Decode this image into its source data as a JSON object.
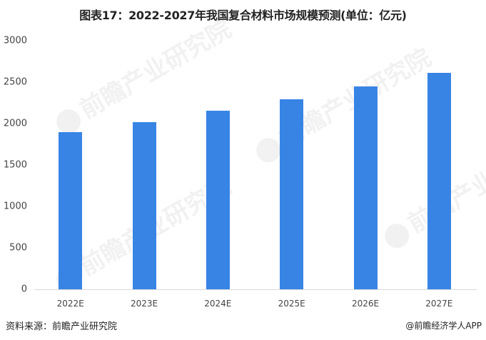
{
  "title": "图表17：2022-2027年我国复合材料市场规模预测(单位：亿元)",
  "source": "资料来源：前瞻产业研究院",
  "credit": "@前瞻经济学人APP",
  "watermark": "前瞻产业研究院",
  "colors": {
    "bar": "#3884e5",
    "axis": "#d9d9d9"
  },
  "chart_data": {
    "type": "bar",
    "title": "图表17：2022-2027年我国复合材料市场规模预测(单位：亿元)",
    "xlabel": "",
    "ylabel": "",
    "categories": [
      "2022E",
      "2023E",
      "2024E",
      "2025E",
      "2026E",
      "2027E"
    ],
    "values": [
      1900,
      2020,
      2155,
      2295,
      2450,
      2610
    ],
    "yticks": [
      "0",
      "500",
      "1000",
      "1500",
      "2000",
      "2500",
      "3000"
    ],
    "ylim": [
      0,
      3000
    ],
    "grid": false,
    "legend": null,
    "unit": "亿元"
  }
}
